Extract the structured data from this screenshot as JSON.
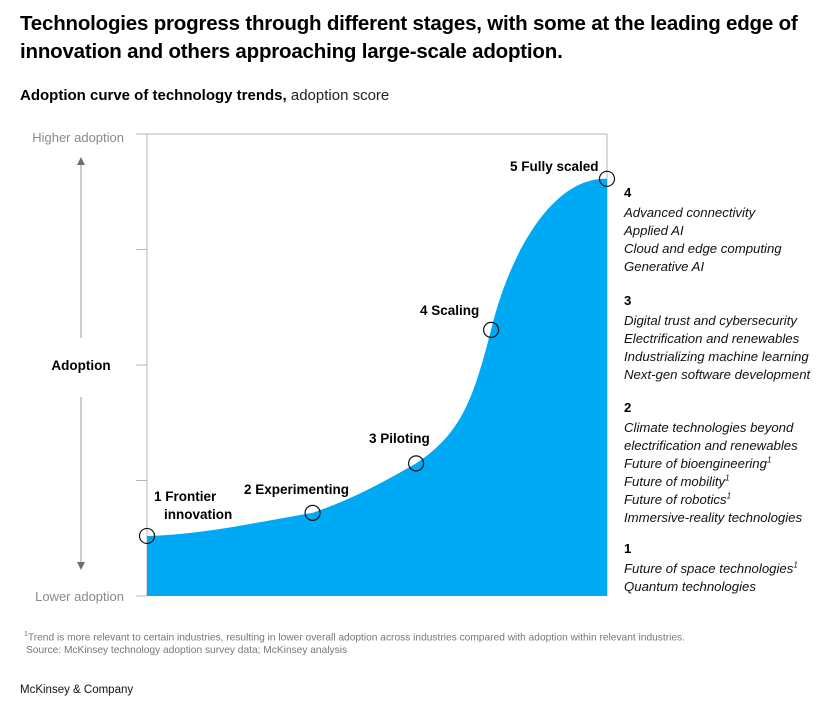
{
  "title": "Technologies progress through different stages, with some at the leading edge of innovation and others approaching large-scale adoption.",
  "subtitle": {
    "bold": "Adoption curve of technology trends,",
    "normal": "adoption score"
  },
  "chart_data": {
    "type": "area",
    "title": "Adoption curve of technology trends",
    "ylabel": "Adoption",
    "y_top_label": "Higher adoption",
    "y_bottom_label": "Lower adoption",
    "ylim": [
      0,
      1
    ],
    "ytick_count": 5,
    "fill_color": "#00a9f4",
    "stages": [
      {
        "label_num": "1",
        "label_line1": "Frontier",
        "label_line2": "innovation",
        "x": 0.0,
        "y": 0.13
      },
      {
        "label_num": "2",
        "label_line1": "Experimenting",
        "x": 0.36,
        "y": 0.18
      },
      {
        "label_num": "3",
        "label_line1": "Piloting",
        "x": 0.585,
        "y": 0.287
      },
      {
        "label_num": "4",
        "label_line1": "Scaling",
        "x": 0.748,
        "y": 0.576
      },
      {
        "label_num": "5",
        "label_line1": "Fully scaled",
        "x": 1.0,
        "y": 0.903
      }
    ]
  },
  "groups": [
    {
      "num": "4",
      "items": [
        {
          "text": "Advanced connectivity"
        },
        {
          "text": "Applied AI"
        },
        {
          "text": "Cloud and edge computing"
        },
        {
          "text": "Generative AI"
        }
      ]
    },
    {
      "num": "3",
      "items": [
        {
          "text": "Digital trust and cybersecurity"
        },
        {
          "text": "Electrification and renewables"
        },
        {
          "text": "Industrializing machine learning"
        },
        {
          "text": "Next-gen software development"
        }
      ]
    },
    {
      "num": "2",
      "items": [
        {
          "text": "Climate technologies beyond"
        },
        {
          "text": "electrification and renewables"
        },
        {
          "text": "Future of bioengineering",
          "sup": "1"
        },
        {
          "text": "Future of mobility",
          "sup": "1"
        },
        {
          "text": "Future of robotics",
          "sup": "1"
        },
        {
          "text": "Immersive-reality technologies"
        }
      ]
    },
    {
      "num": "1",
      "items": [
        {
          "text": "Future of space technologies",
          "sup": "1"
        },
        {
          "text": "Quantum technologies"
        }
      ]
    }
  ],
  "footnote": {
    "sup": "1",
    "text": "Trend is more relevant to certain industries, resulting in lower overall adoption across industries compared with adoption within relevant industries.",
    "source": "Source: McKinsey technology adoption survey data; McKinsey analysis"
  },
  "brand": "McKinsey & Company"
}
